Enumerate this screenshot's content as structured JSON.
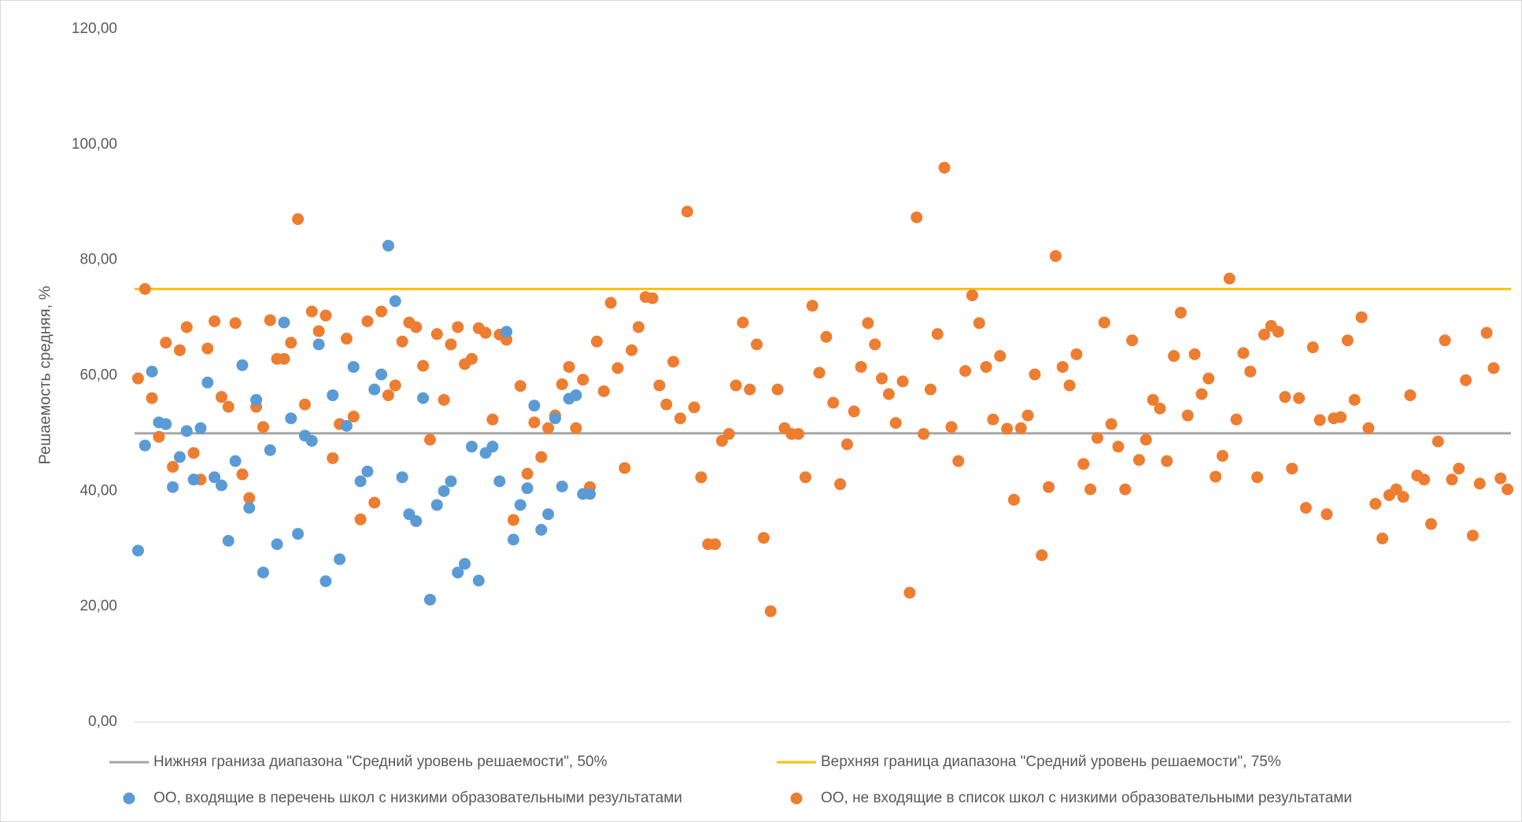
{
  "chart_data": {
    "type": "scatter",
    "y_label": "Решаемость средняя, %",
    "ylim": [
      0,
      120
    ],
    "yticks": [
      {
        "value": 0,
        "label": "0,00"
      },
      {
        "value": 20,
        "label": "20,00"
      },
      {
        "value": 40,
        "label": "40,00"
      },
      {
        "value": 60,
        "label": "60,00"
      },
      {
        "value": 80,
        "label": "80,00"
      },
      {
        "value": 100,
        "label": "100,00"
      },
      {
        "value": 120,
        "label": "120,00"
      }
    ],
    "grid": false,
    "legend": "bottom",
    "reference_lines": [
      {
        "name": "Нижняя граниза диапазона \"Средний уровень решаемости\", 50%",
        "color": "#a5a5a5",
        "value": 50
      },
      {
        "name": "Верхняя граница диапазона \"Средний уровень решаемости\", 75%",
        "color": "#ffc000",
        "value": 75
      }
    ],
    "categories": [
      null,
      null,
      null,
      null,
      null,
      null,
      null,
      null,
      null,
      null,
      null,
      null,
      null,
      null,
      null,
      null,
      null,
      null,
      null,
      null,
      null,
      null,
      null,
      null,
      null,
      null,
      null,
      null,
      null,
      null,
      null,
      null,
      null,
      null,
      null,
      null,
      null,
      null,
      null,
      null,
      null,
      null,
      null,
      null,
      null,
      null,
      null,
      null,
      null,
      null,
      null,
      null,
      null,
      null,
      null,
      null,
      null,
      null,
      null,
      null,
      null,
      null,
      null,
      null,
      null,
      null,
      null,
      null,
      null,
      null,
      null,
      null,
      null,
      null,
      null,
      null,
      null,
      null,
      null,
      null,
      null,
      null,
      null,
      null,
      null,
      null,
      null,
      null,
      null,
      null,
      null,
      null,
      null,
      null,
      null,
      null,
      null,
      null,
      null,
      null,
      null,
      null,
      null,
      null,
      null,
      null,
      null,
      null,
      null,
      null,
      null,
      null,
      null,
      null,
      null,
      null,
      null,
      null,
      null,
      null,
      null,
      null,
      null,
      null,
      null,
      null,
      null,
      null,
      null,
      null,
      null,
      null,
      null,
      null,
      null,
      null,
      null,
      null,
      null,
      null,
      null,
      null,
      null,
      null,
      null,
      null,
      null,
      null,
      null,
      null,
      null,
      null,
      null,
      null,
      null,
      null,
      null,
      null,
      null,
      null,
      null,
      null,
      null,
      null,
      null,
      null,
      null,
      null,
      null,
      null,
      null,
      null,
      null,
      null,
      null,
      null,
      null,
      null,
      null,
      null,
      null,
      null,
      null,
      null,
      null,
      null,
      null,
      null,
      null,
      null,
      null,
      null,
      null,
      null,
      null,
      null,
      null,
      null
    ],
    "series": [
      {
        "name": "ОО, входящие в перечень школ с низкими образовательными результатами",
        "color": "#5b9bd5",
        "values": [
          29.7,
          47.9,
          60.7,
          51.9,
          51.6,
          40.7,
          45.9,
          50.4,
          42.0,
          50.9,
          58.8,
          42.4,
          41.0,
          31.4,
          45.2,
          61.8,
          37.1,
          55.8,
          25.9,
          47.1,
          30.8,
          69.2,
          52.6,
          32.6,
          49.6,
          48.7,
          65.4,
          24.4,
          56.6,
          28.2,
          51.3,
          61.5,
          41.7,
          43.4,
          57.6,
          60.2,
          82.5,
          72.9,
          42.4,
          36.0,
          34.8,
          56.1,
          21.2,
          37.6,
          40.0,
          41.7,
          25.9,
          27.4,
          47.7,
          24.5,
          46.6,
          47.7,
          41.7,
          67.6,
          31.6,
          37.6,
          40.5,
          54.8,
          33.3,
          36.0,
          52.6,
          40.8,
          56.0,
          56.6,
          39.5,
          39.5,
          null,
          null,
          null,
          null,
          null,
          null,
          null,
          null,
          null,
          null,
          null,
          null,
          null,
          null,
          null,
          null,
          null,
          null,
          null,
          null,
          null,
          null,
          null,
          null,
          null,
          null,
          null,
          null,
          null,
          null,
          null,
          null,
          null,
          null,
          null,
          null,
          null,
          null,
          null,
          null,
          null,
          null,
          null,
          null,
          null,
          null,
          null,
          null,
          null,
          null,
          null,
          null,
          null,
          null,
          null,
          null,
          null,
          null,
          null,
          null,
          null,
          null,
          null,
          null,
          null,
          null,
          null,
          null,
          null,
          null,
          null,
          null,
          null,
          null,
          null,
          null,
          null,
          null,
          null,
          null,
          null,
          null,
          null,
          null,
          null,
          null,
          null,
          null,
          null,
          null,
          null,
          null,
          null,
          null,
          null,
          null,
          null,
          null,
          null,
          null,
          null,
          null,
          null,
          null,
          null,
          null,
          null,
          null,
          null,
          null,
          null,
          null,
          null,
          null,
          null,
          null,
          null,
          null,
          null,
          null,
          null,
          null,
          null,
          null,
          null,
          null,
          null,
          null,
          null,
          null,
          null,
          null
        ]
      },
      {
        "name": "ОО, не входящие в список школ с низкими образовательными результатами",
        "color": "#ed7d31",
        "values": [
          59.5,
          75.0,
          56.1,
          49.4,
          65.7,
          44.2,
          64.4,
          68.4,
          46.6,
          42.0,
          64.7,
          69.4,
          56.3,
          54.6,
          69.1,
          42.9,
          38.8,
          54.6,
          51.1,
          69.6,
          62.9,
          62.9,
          65.7,
          87.1,
          55.0,
          71.1,
          67.7,
          70.4,
          45.7,
          51.6,
          66.4,
          52.9,
          35.1,
          69.4,
          38.0,
          71.1,
          56.6,
          58.3,
          65.9,
          69.2,
          68.4,
          61.7,
          48.9,
          67.2,
          55.8,
          65.4,
          68.4,
          62.0,
          62.9,
          68.2,
          67.4,
          52.4,
          67.1,
          66.2,
          35.0,
          58.2,
          43.0,
          51.9,
          45.9,
          50.9,
          53.1,
          58.5,
          61.5,
          50.9,
          59.3,
          40.7,
          65.9,
          57.3,
          72.6,
          61.3,
          44.0,
          64.4,
          68.4,
          73.6,
          73.4,
          58.3,
          55.0,
          62.4,
          52.6,
          88.4,
          54.5,
          42.4,
          30.8,
          30.8,
          48.7,
          49.9,
          58.3,
          69.2,
          57.6,
          65.4,
          31.9,
          19.2,
          57.6,
          50.9,
          49.9,
          49.9,
          42.4,
          72.1,
          60.5,
          66.7,
          55.3,
          41.2,
          48.1,
          53.8,
          61.5,
          69.1,
          65.4,
          59.5,
          56.8,
          51.8,
          59.0,
          22.4,
          87.4,
          49.9,
          57.6,
          67.2,
          96.0,
          51.1,
          45.2,
          60.8,
          73.9,
          69.1,
          61.5,
          52.4,
          63.4,
          50.8,
          38.5,
          50.9,
          53.1,
          60.2,
          28.9,
          40.7,
          80.7,
          61.5,
          58.3,
          63.7,
          44.7,
          40.3,
          49.2,
          69.2,
          51.6,
          47.7,
          40.3,
          66.1,
          45.4,
          48.9,
          55.8,
          54.3,
          45.2,
          63.4,
          70.9,
          53.1,
          63.7,
          56.8,
          59.5,
          42.5,
          46.1,
          76.8,
          52.4,
          63.9,
          60.7,
          42.4,
          67.1,
          68.6,
          67.6,
          56.3,
          43.9,
          56.1,
          37.1,
          64.9,
          52.3,
          36.0,
          52.6,
          52.8,
          66.1,
          55.8,
          70.1,
          50.9,
          37.8,
          31.8,
          39.3,
          40.3,
          39.0,
          56.6,
          42.7,
          42.0,
          34.3,
          48.6,
          66.1,
          42.0,
          43.9,
          59.2,
          32.3,
          41.3,
          67.4,
          61.3,
          42.2,
          40.3
        ]
      }
    ]
  }
}
